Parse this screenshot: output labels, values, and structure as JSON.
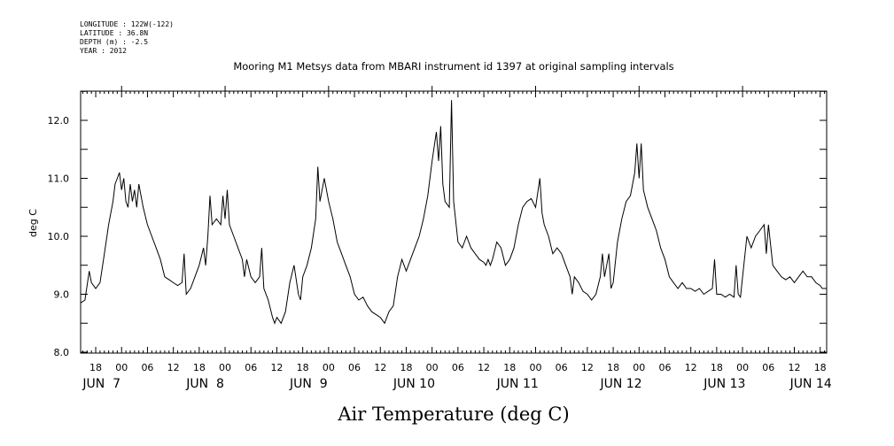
{
  "header": {
    "longitude": "LONGITUDE : 122W(-122)",
    "latitude": "LATITUDE : 36.8N",
    "depth": "DEPTH (m) : -2.5",
    "year": "YEAR : 2012"
  },
  "chart_data": {
    "type": "line",
    "title": "Mooring M1 Metsys data from MBARI instrument id 1397 at original sampling intervals",
    "xlabel": "Air Temperature (deg C)",
    "ylabel": "deg C",
    "ylim": [
      8.0,
      12.5
    ],
    "yticks": [
      {
        "value": 8.0,
        "label": "8.0"
      },
      {
        "value": 9.0,
        "label": "9.0"
      },
      {
        "value": 10.0,
        "label": "10.0"
      },
      {
        "value": 11.0,
        "label": "11.0"
      },
      {
        "value": 12.0,
        "label": "12.0"
      }
    ],
    "xlim_hours": [
      -9.5,
      163.5
    ],
    "x_unit": "hours since 2012-06-07 00:00",
    "hour_ticks": [
      {
        "hour": -6,
        "label": "18"
      },
      {
        "hour": 0,
        "label": "00"
      },
      {
        "hour": 6,
        "label": "06"
      },
      {
        "hour": 12,
        "label": "12"
      },
      {
        "hour": 18,
        "label": "18"
      },
      {
        "hour": 24,
        "label": "00"
      },
      {
        "hour": 30,
        "label": "06"
      },
      {
        "hour": 36,
        "label": "12"
      },
      {
        "hour": 42,
        "label": "18"
      },
      {
        "hour": 48,
        "label": "00"
      },
      {
        "hour": 54,
        "label": "06"
      },
      {
        "hour": 60,
        "label": "12"
      },
      {
        "hour": 66,
        "label": "18"
      },
      {
        "hour": 72,
        "label": "00"
      },
      {
        "hour": 78,
        "label": "06"
      },
      {
        "hour": 84,
        "label": "12"
      },
      {
        "hour": 90,
        "label": "18"
      },
      {
        "hour": 96,
        "label": "00"
      },
      {
        "hour": 102,
        "label": "06"
      },
      {
        "hour": 108,
        "label": "12"
      },
      {
        "hour": 114,
        "label": "18"
      },
      {
        "hour": 120,
        "label": "00"
      },
      {
        "hour": 126,
        "label": "06"
      },
      {
        "hour": 132,
        "label": "12"
      },
      {
        "hour": 138,
        "label": "18"
      },
      {
        "hour": 144,
        "label": "00"
      },
      {
        "hour": 150,
        "label": "06"
      },
      {
        "hour": 156,
        "label": "12"
      },
      {
        "hour": 162,
        "label": "18"
      }
    ],
    "day_labels": [
      {
        "hour": -9,
        "label": "JUN  7"
      },
      {
        "hour": 15,
        "label": "JUN  8"
      },
      {
        "hour": 39,
        "label": "JUN  9"
      },
      {
        "hour": 63,
        "label": "JUN 10"
      },
      {
        "hour": 87,
        "label": "JUN 11"
      },
      {
        "hour": 111,
        "label": "JUN 12"
      },
      {
        "hour": 135,
        "label": "JUN 13"
      },
      {
        "hour": 155,
        "label": "JUN 14"
      }
    ],
    "series": [
      {
        "color": "#000000",
        "points": [
          [
            -9.5,
            8.85
          ],
          [
            -8.5,
            8.9
          ],
          [
            -7.5,
            9.4
          ],
          [
            -7,
            9.2
          ],
          [
            -6,
            9.1
          ],
          [
            -5,
            9.2
          ],
          [
            -4,
            9.7
          ],
          [
            -3,
            10.2
          ],
          [
            -2,
            10.6
          ],
          [
            -1.5,
            10.9
          ],
          [
            -1,
            11.0
          ],
          [
            -0.5,
            11.1
          ],
          [
            0,
            10.8
          ],
          [
            0.5,
            11.0
          ],
          [
            1,
            10.6
          ],
          [
            1.5,
            10.5
          ],
          [
            2,
            10.9
          ],
          [
            2.5,
            10.6
          ],
          [
            3,
            10.8
          ],
          [
            3.5,
            10.5
          ],
          [
            4,
            10.9
          ],
          [
            5,
            10.5
          ],
          [
            6,
            10.2
          ],
          [
            7,
            10.0
          ],
          [
            8,
            9.8
          ],
          [
            9,
            9.6
          ],
          [
            10,
            9.3
          ],
          [
            11,
            9.25
          ],
          [
            12,
            9.2
          ],
          [
            13,
            9.15
          ],
          [
            14,
            9.2
          ],
          [
            14.5,
            9.7
          ],
          [
            15,
            9.0
          ],
          [
            16,
            9.1
          ],
          [
            17,
            9.3
          ],
          [
            18,
            9.5
          ],
          [
            19,
            9.8
          ],
          [
            19.5,
            9.5
          ],
          [
            20,
            10.0
          ],
          [
            20.5,
            10.7
          ],
          [
            21,
            10.2
          ],
          [
            22,
            10.3
          ],
          [
            23,
            10.2
          ],
          [
            23.5,
            10.7
          ],
          [
            24,
            10.3
          ],
          [
            24.5,
            10.8
          ],
          [
            25,
            10.2
          ],
          [
            26,
            10.0
          ],
          [
            27,
            9.8
          ],
          [
            28,
            9.6
          ],
          [
            28.5,
            9.3
          ],
          [
            29,
            9.6
          ],
          [
            30,
            9.3
          ],
          [
            31,
            9.2
          ],
          [
            32,
            9.3
          ],
          [
            32.5,
            9.8
          ],
          [
            33,
            9.1
          ],
          [
            34,
            8.9
          ],
          [
            35,
            8.6
          ],
          [
            35.5,
            8.5
          ],
          [
            36,
            8.6
          ],
          [
            37,
            8.5
          ],
          [
            38,
            8.7
          ],
          [
            39,
            9.2
          ],
          [
            40,
            9.5
          ],
          [
            41,
            9.0
          ],
          [
            41.5,
            8.9
          ],
          [
            42,
            9.3
          ],
          [
            43,
            9.5
          ],
          [
            44,
            9.8
          ],
          [
            45,
            10.3
          ],
          [
            45.5,
            11.2
          ],
          [
            46,
            10.6
          ],
          [
            47,
            11.0
          ],
          [
            48,
            10.6
          ],
          [
            49,
            10.3
          ],
          [
            50,
            9.9
          ],
          [
            51,
            9.7
          ],
          [
            52,
            9.5
          ],
          [
            53,
            9.3
          ],
          [
            54,
            9.0
          ],
          [
            55,
            8.9
          ],
          [
            56,
            8.95
          ],
          [
            57,
            8.8
          ],
          [
            58,
            8.7
          ],
          [
            59,
            8.65
          ],
          [
            60,
            8.6
          ],
          [
            61,
            8.5
          ],
          [
            62,
            8.7
          ],
          [
            63,
            8.8
          ],
          [
            64,
            9.3
          ],
          [
            65,
            9.6
          ],
          [
            66,
            9.4
          ],
          [
            67,
            9.6
          ],
          [
            68,
            9.8
          ],
          [
            69,
            10.0
          ],
          [
            70,
            10.3
          ],
          [
            71,
            10.7
          ],
          [
            72,
            11.3
          ],
          [
            73,
            11.8
          ],
          [
            73.5,
            11.3
          ],
          [
            74,
            11.9
          ],
          [
            74.5,
            10.9
          ],
          [
            75,
            10.6
          ],
          [
            76,
            10.5
          ],
          [
            76.5,
            12.35
          ],
          [
            77,
            10.6
          ],
          [
            78,
            9.9
          ],
          [
            79,
            9.8
          ],
          [
            80,
            10.0
          ],
          [
            81,
            9.8
          ],
          [
            82,
            9.7
          ],
          [
            83,
            9.6
          ],
          [
            84,
            9.55
          ],
          [
            84.5,
            9.5
          ],
          [
            85,
            9.6
          ],
          [
            85.5,
            9.5
          ],
          [
            86,
            9.6
          ],
          [
            87,
            9.9
          ],
          [
            88,
            9.8
          ],
          [
            89,
            9.5
          ],
          [
            90,
            9.6
          ],
          [
            91,
            9.8
          ],
          [
            92,
            10.2
          ],
          [
            93,
            10.5
          ],
          [
            94,
            10.6
          ],
          [
            95,
            10.65
          ],
          [
            96,
            10.5
          ],
          [
            97,
            11.0
          ],
          [
            97.5,
            10.4
          ],
          [
            98,
            10.2
          ],
          [
            99,
            10.0
          ],
          [
            100,
            9.7
          ],
          [
            101,
            9.8
          ],
          [
            102,
            9.7
          ],
          [
            103,
            9.5
          ],
          [
            104,
            9.3
          ],
          [
            104.5,
            9.0
          ],
          [
            105,
            9.3
          ],
          [
            106,
            9.2
          ],
          [
            107,
            9.05
          ],
          [
            108,
            9.0
          ],
          [
            109,
            8.9
          ],
          [
            110,
            9.0
          ],
          [
            111,
            9.3
          ],
          [
            111.5,
            9.7
          ],
          [
            112,
            9.3
          ],
          [
            113,
            9.7
          ],
          [
            113.5,
            9.1
          ],
          [
            114,
            9.2
          ],
          [
            115,
            9.9
          ],
          [
            116,
            10.3
          ],
          [
            117,
            10.6
          ],
          [
            118,
            10.7
          ],
          [
            119,
            11.1
          ],
          [
            119.5,
            11.6
          ],
          [
            120,
            11.0
          ],
          [
            120.5,
            11.6
          ],
          [
            121,
            10.8
          ],
          [
            122,
            10.5
          ],
          [
            123,
            10.3
          ],
          [
            124,
            10.1
          ],
          [
            125,
            9.8
          ],
          [
            126,
            9.6
          ],
          [
            127,
            9.3
          ],
          [
            128,
            9.2
          ],
          [
            129,
            9.1
          ],
          [
            130,
            9.2
          ],
          [
            131,
            9.1
          ],
          [
            132,
            9.1
          ],
          [
            133,
            9.05
          ],
          [
            134,
            9.1
          ],
          [
            135,
            9.0
          ],
          [
            136,
            9.05
          ],
          [
            137,
            9.1
          ],
          [
            137.5,
            9.6
          ],
          [
            138,
            9.0
          ],
          [
            139,
            9.0
          ],
          [
            140,
            8.95
          ],
          [
            141,
            9.0
          ],
          [
            142,
            8.95
          ],
          [
            142.5,
            9.5
          ],
          [
            143,
            9.0
          ],
          [
            143.5,
            8.95
          ],
          [
            144,
            9.3
          ],
          [
            145,
            10.0
          ],
          [
            146,
            9.8
          ],
          [
            147,
            10.0
          ],
          [
            148,
            10.1
          ],
          [
            149,
            10.2
          ],
          [
            149.5,
            9.7
          ],
          [
            150,
            10.2
          ],
          [
            151,
            9.5
          ],
          [
            152,
            9.4
          ],
          [
            153,
            9.3
          ],
          [
            154,
            9.25
          ],
          [
            155,
            9.3
          ],
          [
            156,
            9.2
          ],
          [
            157,
            9.3
          ],
          [
            158,
            9.4
          ],
          [
            159,
            9.3
          ],
          [
            160,
            9.3
          ],
          [
            161,
            9.2
          ],
          [
            162,
            9.15
          ],
          [
            162.5,
            9.1
          ],
          [
            163,
            9.1
          ],
          [
            163.5,
            9.1
          ]
        ]
      }
    ]
  }
}
